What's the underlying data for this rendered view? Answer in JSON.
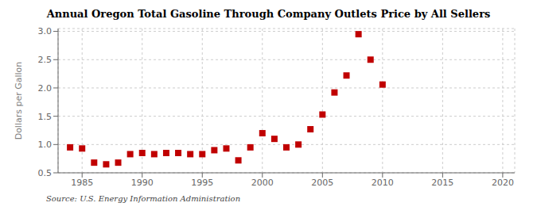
{
  "chart_data": {
    "type": "scatter",
    "title": "Annual Oregon Total Gasoline Through Company Outlets Price by All Sellers",
    "ylabel": "Dollars per Gallon",
    "annotation": "Source: U.S. Energy Information Administration",
    "x": [
      1984,
      1985,
      1986,
      1987,
      1988,
      1989,
      1990,
      1991,
      1992,
      1993,
      1994,
      1995,
      1996,
      1997,
      1998,
      1999,
      2000,
      2001,
      2002,
      2003,
      2004,
      2005,
      2006,
      2007,
      2008,
      2009,
      2010
    ],
    "values": [
      0.95,
      0.93,
      0.68,
      0.65,
      0.68,
      0.83,
      0.85,
      0.83,
      0.85,
      0.85,
      0.83,
      0.83,
      0.9,
      0.93,
      0.72,
      0.95,
      1.2,
      1.1,
      0.95,
      1.0,
      1.27,
      1.53,
      1.92,
      2.22,
      2.95,
      2.5,
      2.06
    ],
    "color": "#c00000",
    "marker": "square",
    "xlim": [
      1983,
      2021
    ],
    "ylim": [
      0.5,
      3.05
    ],
    "xticks": [
      1985,
      1990,
      1995,
      2000,
      2005,
      2010,
      2015,
      2020
    ],
    "yticks": [
      0.5,
      {
        "value": 1.0,
        "label": "1.0"
      },
      1.5,
      {
        "value": 2.0,
        "label": "2.0"
      },
      2.5,
      {
        "value": 3.0,
        "label": "3.0"
      }
    ],
    "grid": true
  }
}
